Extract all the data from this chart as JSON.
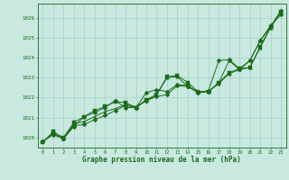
{
  "background_color": "#c8e8e0",
  "grid_color": "#a0c8c0",
  "line_color": "#1a6b1a",
  "marker_color": "#1a6b1a",
  "xlabel": "Graphe pression niveau de la mer (hPa)",
  "xlabel_color": "#1a6b1a",
  "tick_color": "#1a6b1a",
  "spine_color": "#1a6b1a",
  "xlim": [
    -0.5,
    23.5
  ],
  "ylim": [
    1019.5,
    1026.7
  ],
  "yticks": [
    1020,
    1021,
    1022,
    1023,
    1024,
    1025,
    1026
  ],
  "xticks": [
    0,
    1,
    2,
    3,
    4,
    5,
    6,
    7,
    8,
    9,
    10,
    11,
    12,
    13,
    14,
    15,
    16,
    17,
    18,
    19,
    20,
    21,
    22,
    23
  ],
  "series": [
    [
      1019.8,
      1020.2,
      1019.95,
      1020.7,
      1020.8,
      1021.05,
      1021.3,
      1021.45,
      1021.65,
      1021.55,
      1021.85,
      1022.15,
      1023.0,
      1023.05,
      1022.55,
      1022.3,
      1022.3,
      1022.7,
      1023.2,
      1023.4,
      1023.5,
      1024.5,
      1025.5,
      1026.3
    ],
    [
      1019.8,
      1020.2,
      1019.95,
      1020.55,
      1021.05,
      1021.25,
      1021.5,
      1021.85,
      1021.5,
      1021.5,
      1022.25,
      1022.4,
      1022.3,
      1022.65,
      1022.6,
      1022.25,
      1022.35,
      1023.85,
      1023.9,
      1023.45,
      1023.85,
      1024.85,
      1025.6,
      1026.15
    ],
    [
      1019.8,
      1020.15,
      1019.95,
      1020.6,
      1020.65,
      1020.9,
      1021.1,
      1021.35,
      1021.6,
      1021.5,
      1021.85,
      1022.05,
      1022.15,
      1022.6,
      1022.55,
      1022.25,
      1022.3,
      1022.75,
      1023.85,
      1023.4,
      1023.85,
      1024.85,
      1025.55,
      1026.35
    ],
    [
      1019.75,
      1020.3,
      1020.0,
      1020.75,
      1021.05,
      1021.35,
      1021.55,
      1021.8,
      1021.75,
      1021.5,
      1021.9,
      1022.15,
      1023.05,
      1023.1,
      1022.75,
      1022.3,
      1022.3,
      1022.75,
      1023.25,
      1023.45,
      1023.5,
      1024.55,
      1025.55,
      1026.3
    ]
  ]
}
